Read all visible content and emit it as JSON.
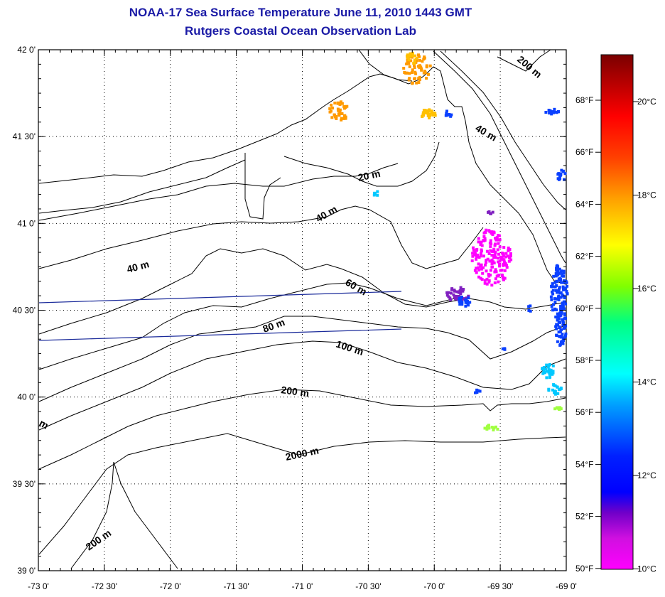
{
  "title": "NOAA-17 Sea Surface Temperature June 11, 2010 1443 GMT",
  "subtitle": "Rutgers Coastal Ocean Observation Lab",
  "map": {
    "lon_min": -73.0,
    "lon_max": -69.0,
    "lat_min": 39.0,
    "lat_max": 42.0,
    "lon_ticks": [
      "-73 0'",
      "-72 30'",
      "-72 0'",
      "-71 30'",
      "-71 0'",
      "-70 30'",
      "-70 0'",
      "-69 30'",
      "-69 0'"
    ],
    "lat_ticks": [
      "42 0'",
      "41 30'",
      "41 0'",
      "40 30'",
      "40 0'",
      "39 30'",
      "39 0'"
    ],
    "grid": "dotted",
    "contour_labels": [
      "20 m",
      "40 m",
      "40 m",
      "40 m",
      "60 m",
      "80 m",
      "100 m",
      "200 m",
      "200 m",
      "200 m",
      "2000 m",
      "m"
    ]
  },
  "colorbar": {
    "fahrenheit_labels": [
      "68°F",
      "66°F",
      "64°F",
      "62°F",
      "60°F",
      "58°F",
      "56°F",
      "54°F",
      "52°F",
      "50°F"
    ],
    "celsius_labels": [
      "20°C",
      "18°C",
      "16°C",
      "14°C",
      "12°C",
      "10°C"
    ],
    "colors": [
      "#7a0000",
      "#ff0000",
      "#ff8000",
      "#ffff00",
      "#00e000",
      "#00ffff",
      "#0000ff",
      "#8000c0",
      "#ff00ff"
    ]
  },
  "sst_colors": {
    "warm_orange": "#ff9a00",
    "yellow_orange": "#ffc000",
    "magenta": "#ff00ff",
    "purple": "#8020c0",
    "blue": "#0a40ff",
    "cyan": "#00c8ff",
    "light_green": "#a0ff40"
  }
}
